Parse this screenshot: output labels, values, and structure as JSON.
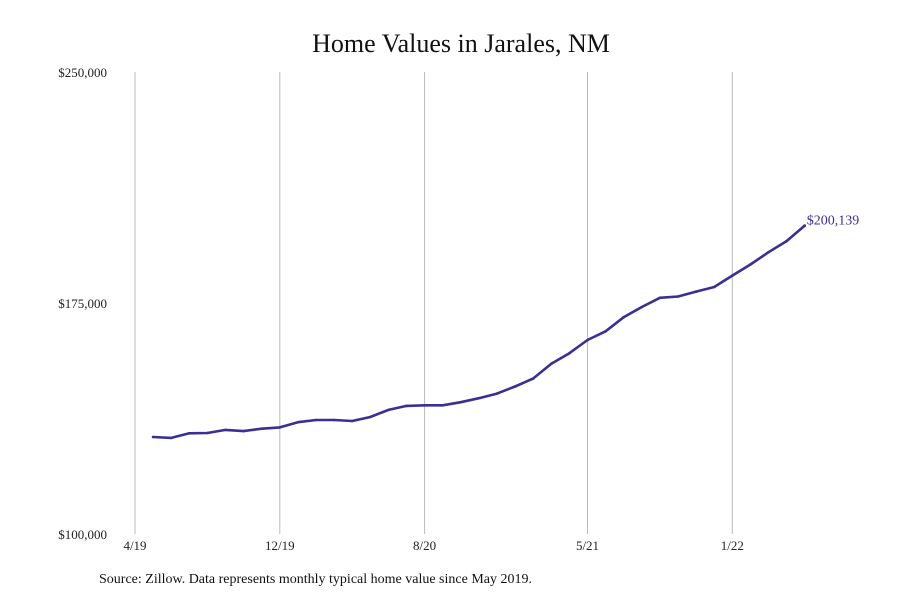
{
  "chart_data": {
    "type": "line",
    "title": "Home Values in Jarales, NM",
    "xlabel": "",
    "ylabel": "",
    "x_tick_labels": [
      "4/19",
      "12/19",
      "8/20",
      "5/21",
      "1/22"
    ],
    "y_tick_labels": [
      "$250,000",
      "$175,000",
      "$100,000"
    ],
    "y_ticks": [
      250000,
      175000,
      100000
    ],
    "ylim": [
      100000,
      250000
    ],
    "grid": "vertical",
    "colors": {
      "series": "#3a2f93",
      "end_label": "#3a2f93",
      "grid": "#b9b9b9"
    },
    "series": [
      {
        "x": [
          "2019-05",
          "2019-06",
          "2019-07",
          "2019-08",
          "2019-09",
          "2019-10",
          "2019-11",
          "2019-12",
          "2020-01",
          "2020-02",
          "2020-03",
          "2020-04",
          "2020-05",
          "2020-06",
          "2020-07",
          "2020-08",
          "2020-09",
          "2020-10",
          "2020-11",
          "2020-12",
          "2021-01",
          "2021-02",
          "2021-03",
          "2021-04",
          "2021-05",
          "2021-06",
          "2021-07",
          "2021-08",
          "2021-09",
          "2021-10",
          "2021-11",
          "2021-12",
          "2022-01",
          "2022-02",
          "2022-03",
          "2022-04",
          "2022-05"
        ],
        "values": [
          131500,
          131200,
          132700,
          132800,
          133800,
          133400,
          134200,
          134600,
          136300,
          137000,
          137000,
          136700,
          138000,
          140300,
          141600,
          141800,
          141800,
          142800,
          144100,
          145600,
          147900,
          150500,
          155300,
          158700,
          163000,
          165800,
          170400,
          173700,
          176700,
          177100,
          178700,
          180200,
          183900,
          187500,
          191500,
          195100,
          200139
        ]
      }
    ],
    "end_label": "$200,139"
  },
  "source_note": "Source: Zillow. Data represents monthly typical home value since May 2019."
}
